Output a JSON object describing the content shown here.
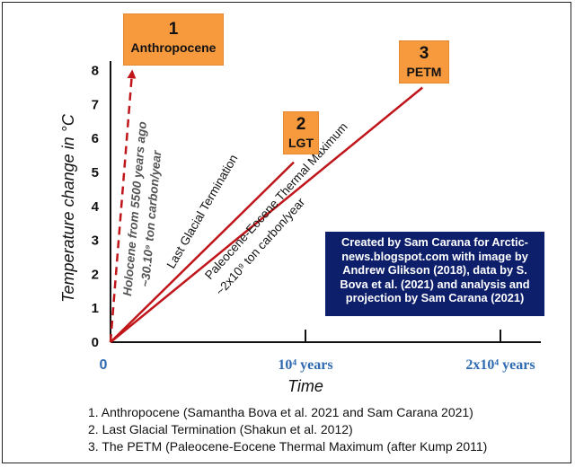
{
  "chart_data": {
    "type": "line",
    "xlabel": "Time",
    "ylabel": "Temperature change in °C",
    "ylim": [
      0,
      8
    ],
    "xlim": [
      0,
      2.2
    ],
    "y_ticks": [
      "0",
      "1",
      "2",
      "3",
      "4",
      "5",
      "6",
      "7",
      "8"
    ],
    "x_ticks": [
      {
        "value": 0,
        "label": "0"
      },
      {
        "value": 1,
        "label": "10⁴ years"
      },
      {
        "value": 2,
        "label": "2x10⁴ years"
      }
    ],
    "series": [
      {
        "name": "Anthropocene",
        "style": "dashed",
        "color": "#c0161b",
        "x": [
          0,
          0.11
        ],
        "y": [
          0,
          7.9
        ]
      },
      {
        "name": "Last Glacial Termination",
        "style": "solid",
        "color": "#c0161b",
        "x": [
          0,
          0.94
        ],
        "y": [
          0,
          5.3
        ]
      },
      {
        "name": "PETM",
        "style": "solid",
        "color": "#c0161b",
        "x": [
          0,
          1.6
        ],
        "y": [
          0,
          7.5
        ]
      }
    ],
    "annotations": {
      "holocene_line1": "Holocene from 5500 years ago",
      "holocene_line2": "~30.10⁹ ton carbon/year",
      "lgt": "Last Glacial Termination",
      "petm_line1": "Paleocene-Eocene Thermal Maximum",
      "petm_line2": "~2x10⁹ ton carbon/year"
    }
  },
  "badges": [
    {
      "num": "1",
      "label": "Anthropocene"
    },
    {
      "num": "2",
      "label": "LGT"
    },
    {
      "num": "3",
      "label": "PETM"
    }
  ],
  "credit": "Created by Sam Carana for Arctic-news.blogspot.com with image by Andrew Glikson (2018), data by S. Bova et al. (2021) and analysis and projection by Sam Carana (2021)",
  "footnotes": [
    "1. Anthropocene (Samantha Bova et al. 2021 and Sam Carana 2021)",
    "2. Last Glacial Termination (Shakun et al. 2012)",
    "3. The PETM (Paleocene-Eocene Thermal Maximum (after Kump 2011)"
  ],
  "colors": {
    "line": "#c0161b",
    "badge": "#f7993d",
    "credit_bg": "#0d1f6b",
    "tick_x": "#2e6ab1"
  }
}
